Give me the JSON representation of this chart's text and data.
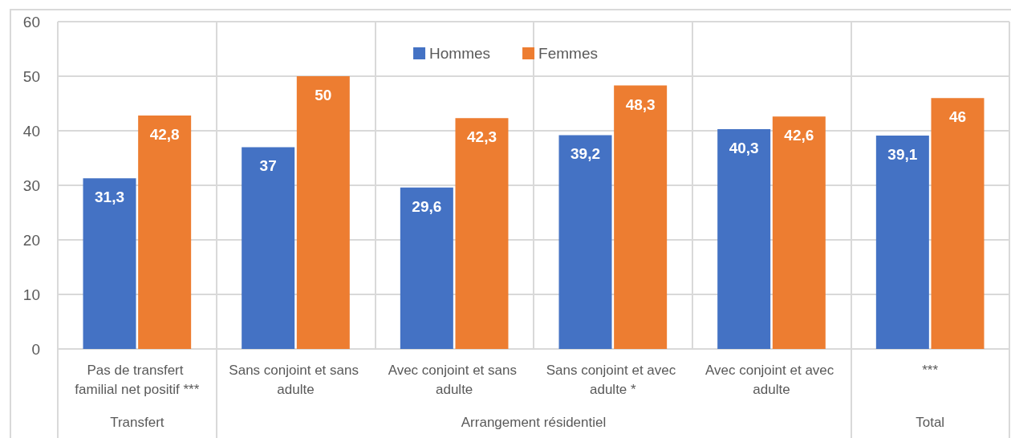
{
  "chart_data": {
    "type": "bar",
    "categories": [
      "Pas de transfert familial net positif ***",
      "Sans conjoint et sans adulte",
      "Avec conjoint et sans adulte",
      "Sans conjoint et avec adulte *",
      "Avec conjoint et avec adulte",
      "***"
    ],
    "series": [
      {
        "name": "Hommes",
        "color": "#4472c4",
        "values": [
          31.3,
          37,
          29.6,
          39.2,
          40.3,
          39.1
        ],
        "value_labels": [
          "31,3",
          "37",
          "29,6",
          "39,2",
          "40,3",
          "39,1"
        ]
      },
      {
        "name": "Femmes",
        "color": "#ed7d31",
        "values": [
          42.8,
          50,
          42.3,
          48.3,
          42.6,
          46
        ],
        "value_labels": [
          "42,8",
          "50",
          "42,3",
          "48,3",
          "42,6",
          "46"
        ]
      }
    ],
    "ylim": [
      0,
      60
    ],
    "yticks": [
      0,
      10,
      20,
      30,
      40,
      50,
      60
    ],
    "grid": true,
    "legend": "top",
    "annotations": [
      "Transfert",
      "Arrangement résidentiel",
      "Total"
    ]
  }
}
